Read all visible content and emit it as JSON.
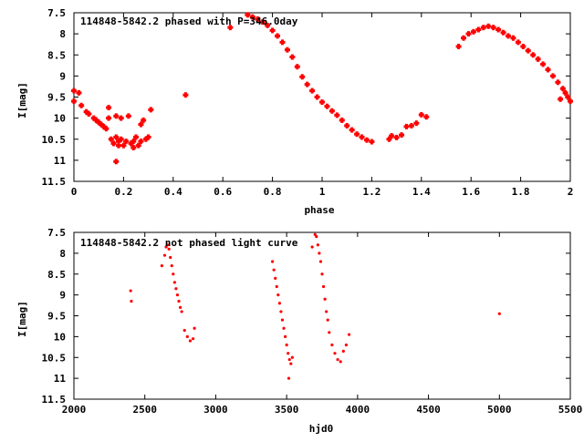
{
  "chart_data": [
    {
      "type": "scatter",
      "title": "114848-5842.2 phased with P=346.0day",
      "xlabel": "phase",
      "ylabel": "I[mag]",
      "xlim": [
        0,
        2
      ],
      "ylim": [
        7.5,
        11.5
      ],
      "y_inverted": true,
      "x_ticks": [
        "0",
        "0.2",
        "0.4",
        "0.6",
        "0.8",
        "1",
        "1.2",
        "1.4",
        "1.6",
        "1.8",
        "2"
      ],
      "y_ticks": [
        "7.5",
        "8",
        "8.5",
        "9",
        "9.5",
        "10",
        "10.5",
        "11",
        "11.5"
      ],
      "marker_color": "#ff0000",
      "marker": "cross",
      "series": [
        {
          "points": [
            [
              0.0,
              9.35
            ],
            [
              0.0,
              9.6
            ],
            [
              0.02,
              9.4
            ],
            [
              0.03,
              9.7
            ],
            [
              0.05,
              9.85
            ],
            [
              0.06,
              9.9
            ],
            [
              0.08,
              10.0
            ],
            [
              0.09,
              10.05
            ],
            [
              0.1,
              10.1
            ],
            [
              0.11,
              10.15
            ],
            [
              0.12,
              10.2
            ],
            [
              0.13,
              10.25
            ],
            [
              0.14,
              10.0
            ],
            [
              0.14,
              9.75
            ],
            [
              0.15,
              10.5
            ],
            [
              0.16,
              10.6
            ],
            [
              0.17,
              10.45
            ],
            [
              0.17,
              9.95
            ],
            [
              0.18,
              10.55
            ],
            [
              0.18,
              10.65
            ],
            [
              0.17,
              11.03
            ],
            [
              0.19,
              10.5
            ],
            [
              0.19,
              10.0
            ],
            [
              0.2,
              10.65
            ],
            [
              0.21,
              10.55
            ],
            [
              0.22,
              9.95
            ],
            [
              0.23,
              10.6
            ],
            [
              0.24,
              10.55
            ],
            [
              0.24,
              10.7
            ],
            [
              0.25,
              10.45
            ],
            [
              0.26,
              10.65
            ],
            [
              0.27,
              10.55
            ],
            [
              0.27,
              10.15
            ],
            [
              0.28,
              10.05
            ],
            [
              0.29,
              10.5
            ],
            [
              0.3,
              10.45
            ],
            [
              0.31,
              9.8
            ],
            [
              0.45,
              9.45
            ],
            [
              0.63,
              7.85
            ],
            [
              0.7,
              7.55
            ],
            [
              0.72,
              7.6
            ],
            [
              0.74,
              7.65
            ],
            [
              0.76,
              7.72
            ],
            [
              0.78,
              7.8
            ],
            [
              0.8,
              7.92
            ],
            [
              0.82,
              8.05
            ],
            [
              0.84,
              8.2
            ],
            [
              0.86,
              8.38
            ],
            [
              0.88,
              8.55
            ],
            [
              0.9,
              8.78
            ],
            [
              0.92,
              9.02
            ],
            [
              0.94,
              9.2
            ],
            [
              0.96,
              9.35
            ],
            [
              0.98,
              9.5
            ],
            [
              1.0,
              9.62
            ],
            [
              1.02,
              9.72
            ],
            [
              1.04,
              9.83
            ],
            [
              1.06,
              9.93
            ],
            [
              1.08,
              10.05
            ],
            [
              1.1,
              10.18
            ],
            [
              1.12,
              10.28
            ],
            [
              1.14,
              10.38
            ],
            [
              1.16,
              10.45
            ],
            [
              1.18,
              10.52
            ],
            [
              1.2,
              10.56
            ],
            [
              1.27,
              10.5
            ],
            [
              1.28,
              10.42
            ],
            [
              1.3,
              10.46
            ],
            [
              1.32,
              10.4
            ],
            [
              1.34,
              10.2
            ],
            [
              1.36,
              10.18
            ],
            [
              1.38,
              10.12
            ],
            [
              1.4,
              9.92
            ],
            [
              1.42,
              9.97
            ],
            [
              1.55,
              8.3
            ],
            [
              1.57,
              8.1
            ],
            [
              1.59,
              8.0
            ],
            [
              1.61,
              7.95
            ],
            [
              1.63,
              7.9
            ],
            [
              1.65,
              7.85
            ],
            [
              1.67,
              7.82
            ],
            [
              1.69,
              7.85
            ],
            [
              1.71,
              7.9
            ],
            [
              1.73,
              7.97
            ],
            [
              1.75,
              8.05
            ],
            [
              1.77,
              8.1
            ],
            [
              1.79,
              8.2
            ],
            [
              1.81,
              8.3
            ],
            [
              1.83,
              8.4
            ],
            [
              1.85,
              8.5
            ],
            [
              1.87,
              8.6
            ],
            [
              1.89,
              8.72
            ],
            [
              1.91,
              8.85
            ],
            [
              1.93,
              9.0
            ],
            [
              1.95,
              9.15
            ],
            [
              1.97,
              9.3
            ],
            [
              1.98,
              9.4
            ],
            [
              1.99,
              9.5
            ],
            [
              2.0,
              9.6
            ],
            [
              1.96,
              9.55
            ]
          ]
        }
      ]
    },
    {
      "type": "scatter",
      "title": "114848-5842.2 not phased light curve",
      "xlabel": "hjd0",
      "ylabel": "I[mag]",
      "xlim": [
        2000,
        5500
      ],
      "ylim": [
        7.5,
        11.5
      ],
      "y_inverted": true,
      "x_ticks": [
        "2000",
        "2500",
        "3000",
        "3500",
        "4000",
        "4500",
        "5000",
        "5500"
      ],
      "y_ticks": [
        "7.5",
        "8",
        "8.5",
        "9",
        "9.5",
        "10",
        "10.5",
        "11",
        "11.5"
      ],
      "marker_color": "#ff0000",
      "marker": "dot",
      "series": [
        {
          "points": [
            [
              2400,
              8.9
            ],
            [
              2405,
              9.15
            ],
            [
              2620,
              8.3
            ],
            [
              2640,
              8.05
            ],
            [
              2650,
              7.85
            ],
            [
              2660,
              7.8
            ],
            [
              2670,
              7.9
            ],
            [
              2680,
              8.1
            ],
            [
              2690,
              8.3
            ],
            [
              2700,
              8.5
            ],
            [
              2710,
              8.7
            ],
            [
              2720,
              8.85
            ],
            [
              2730,
              9.0
            ],
            [
              2740,
              9.15
            ],
            [
              2750,
              9.3
            ],
            [
              2760,
              9.4
            ],
            [
              2780,
              9.85
            ],
            [
              2800,
              10.0
            ],
            [
              2820,
              10.1
            ],
            [
              2840,
              10.05
            ],
            [
              2850,
              9.8
            ],
            [
              3400,
              8.2
            ],
            [
              3410,
              8.4
            ],
            [
              3420,
              8.6
            ],
            [
              3430,
              8.8
            ],
            [
              3440,
              9.0
            ],
            [
              3450,
              9.2
            ],
            [
              3460,
              9.4
            ],
            [
              3470,
              9.6
            ],
            [
              3480,
              9.8
            ],
            [
              3490,
              10.0
            ],
            [
              3500,
              10.2
            ],
            [
              3510,
              10.4
            ],
            [
              3520,
              10.55
            ],
            [
              3530,
              10.65
            ],
            [
              3540,
              10.5
            ],
            [
              3515,
              11.0
            ],
            [
              3680,
              7.85
            ],
            [
              3700,
              7.55
            ],
            [
              3710,
              7.6
            ],
            [
              3720,
              7.8
            ],
            [
              3730,
              8.0
            ],
            [
              3740,
              8.2
            ],
            [
              3750,
              8.5
            ],
            [
              3760,
              8.8
            ],
            [
              3770,
              9.1
            ],
            [
              3780,
              9.4
            ],
            [
              3790,
              9.6
            ],
            [
              3800,
              9.9
            ],
            [
              3820,
              10.2
            ],
            [
              3840,
              10.4
            ],
            [
              3860,
              10.55
            ],
            [
              3880,
              10.6
            ],
            [
              3900,
              10.35
            ],
            [
              3920,
              10.2
            ],
            [
              3940,
              9.95
            ],
            [
              5000,
              9.45
            ]
          ]
        }
      ]
    }
  ]
}
